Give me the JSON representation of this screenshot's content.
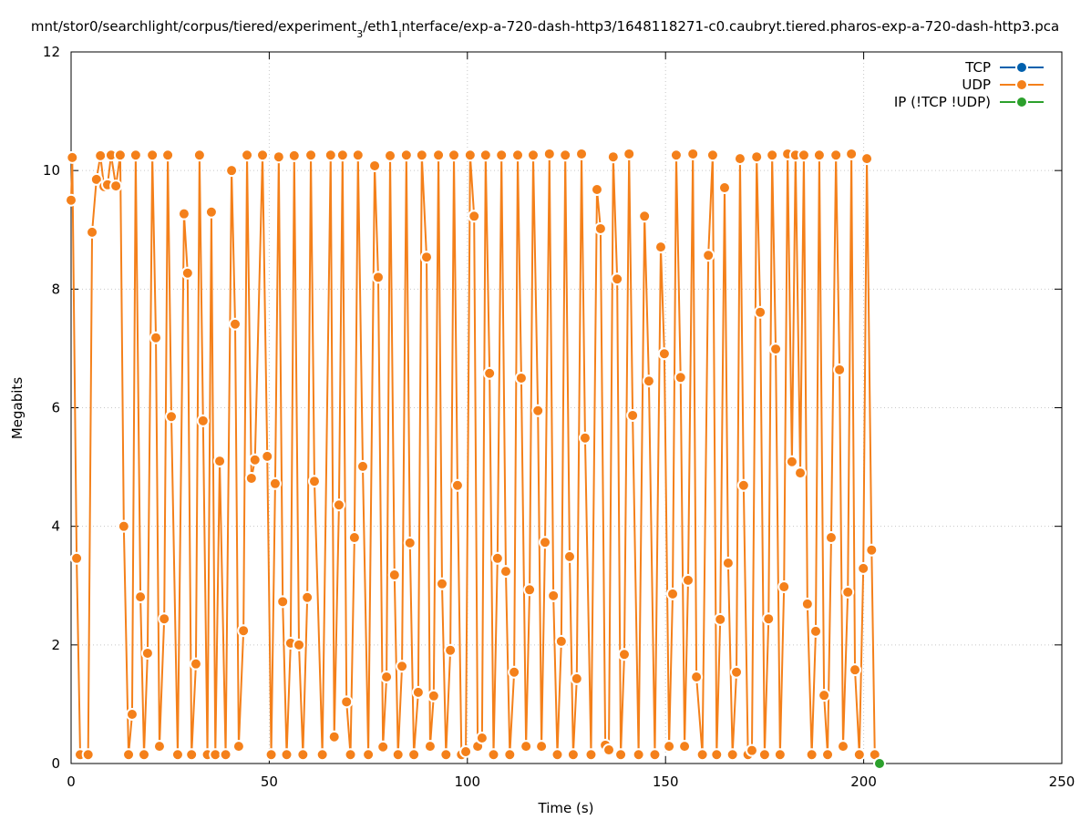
{
  "chart_data": {
    "type": "line",
    "title_parts": [
      {
        "text": "mnt/stor0/searchlight/corpus/tiered/experiment"
      },
      {
        "text": "3",
        "subscript": true
      },
      {
        "text": "/eth1"
      },
      {
        "text": "i",
        "subscript": true
      },
      {
        "text": "nterface/exp-a-720-dash-http3/1648118271-c0.caubryt.tiered.pharos-exp-a-720-dash-http3.pca"
      }
    ],
    "x_label": "Time (s)",
    "y_label": "Megabits",
    "xlim": [
      0,
      250
    ],
    "xticks": [
      0,
      50,
      100,
      150,
      200,
      250
    ],
    "ylim": [
      0,
      12
    ],
    "yticks": [
      0,
      2,
      4,
      6,
      8,
      10,
      12
    ],
    "grid": true,
    "legend": "top-right",
    "series": [
      {
        "name": "TCP",
        "color": "#0060ad",
        "x": [],
        "values": []
      },
      {
        "name": "UDP",
        "color": "#f4801a",
        "x": [
          0,
          0.3,
          1.4,
          2.3,
          4.3,
          5.3,
          6.4,
          7.4,
          8.3,
          9.2,
          10.1,
          11.3,
          12.4,
          13.3,
          14.5,
          15.4,
          16.3,
          17.5,
          18.4,
          19.3,
          20.5,
          21.4,
          22.3,
          23.5,
          24.4,
          25.3,
          26.9,
          28.5,
          29.4,
          30.4,
          31.5,
          32.4,
          33.3,
          34.4,
          35.4,
          36.4,
          37.5,
          39,
          40.5,
          41.4,
          42.3,
          43.5,
          44.4,
          45.5,
          46.4,
          48.3,
          49.5,
          50.5,
          51.5,
          52.4,
          53.4,
          54.4,
          55.4,
          56.3,
          57.5,
          58.5,
          59.6,
          60.5,
          61.4,
          63.4,
          65.5,
          66.4,
          67.6,
          68.5,
          69.5,
          70.5,
          71.5,
          72.4,
          73.6,
          75,
          76.6,
          77.5,
          78.7,
          79.6,
          80.5,
          81.6,
          82.5,
          83.5,
          84.6,
          85.5,
          86.5,
          87.6,
          88.5,
          89.7,
          90.6,
          91.5,
          92.7,
          93.6,
          94.6,
          95.7,
          96.6,
          97.5,
          98.5,
          99.6,
          100.7,
          101.7,
          102.6,
          103.7,
          104.6,
          105.6,
          106.6,
          107.6,
          108.6,
          109.7,
          110.7,
          111.8,
          112.7,
          113.6,
          114.8,
          115.7,
          116.6,
          117.8,
          118.7,
          119.6,
          120.7,
          121.7,
          122.7,
          123.7,
          124.7,
          125.8,
          126.7,
          127.6,
          128.8,
          129.7,
          131.2,
          132.7,
          133.6,
          134.8,
          135.7,
          136.8,
          137.8,
          138.7,
          139.6,
          140.8,
          141.7,
          143.2,
          144.7,
          145.8,
          147.3,
          148.8,
          149.7,
          150.9,
          151.8,
          152.7,
          153.8,
          154.8,
          155.7,
          156.9,
          157.8,
          159.3,
          160.8,
          161.9,
          162.9,
          163.8,
          164.9,
          165.8,
          166.9,
          167.9,
          168.8,
          169.7,
          170.8,
          171.8,
          173,
          173.9,
          175,
          176,
          176.9,
          177.8,
          178.9,
          179.9,
          180.8,
          181.9,
          182.8,
          184,
          184.9,
          185.8,
          186.9,
          187.9,
          188.8,
          190,
          190.9,
          191.8,
          193,
          193.9,
          194.8,
          196,
          196.9,
          197.8,
          198.9,
          199.9,
          200.8,
          202,
          202.8
        ],
        "values": [
          9.5,
          10.22,
          3.46,
          0.15,
          0.15,
          8.96,
          9.85,
          10.25,
          9.73,
          9.76,
          10.26,
          9.74,
          10.26,
          4.0,
          0.15,
          0.83,
          10.26,
          2.81,
          0.15,
          1.86,
          10.26,
          7.18,
          0.29,
          2.44,
          10.26,
          5.85,
          0.15,
          9.27,
          8.27,
          0.15,
          1.68,
          10.26,
          5.78,
          0.15,
          9.3,
          0.15,
          5.1,
          0.15,
          10.0,
          7.41,
          0.29,
          2.24,
          10.26,
          4.81,
          5.12,
          10.26,
          5.18,
          0.15,
          4.72,
          10.23,
          2.73,
          0.15,
          2.03,
          10.25,
          2.0,
          0.15,
          2.8,
          10.26,
          4.76,
          0.15,
          10.26,
          0.45,
          4.36,
          10.26,
          1.04,
          0.15,
          3.81,
          10.26,
          5.01,
          0.15,
          10.08,
          8.2,
          0.28,
          1.46,
          10.25,
          3.18,
          0.15,
          1.64,
          10.26,
          3.72,
          0.15,
          1.2,
          10.26,
          8.54,
          0.29,
          1.14,
          10.26,
          3.03,
          0.15,
          1.91,
          10.26,
          4.69,
          0.15,
          0.2,
          10.26,
          9.23,
          0.29,
          0.43,
          10.26,
          6.58,
          0.15,
          3.46,
          10.26,
          3.24,
          0.15,
          1.54,
          10.26,
          6.5,
          0.29,
          2.93,
          10.26,
          5.95,
          0.29,
          3.73,
          10.28,
          2.83,
          0.15,
          2.06,
          10.26,
          3.49,
          0.15,
          1.43,
          10.28,
          5.49,
          0.15,
          9.68,
          9.02,
          0.31,
          0.23,
          10.23,
          8.17,
          0.15,
          1.84,
          10.28,
          5.87,
          0.15,
          9.23,
          6.45,
          0.15,
          8.71,
          6.91,
          0.29,
          2.86,
          10.26,
          6.51,
          0.29,
          3.09,
          10.28,
          1.46,
          0.15,
          8.57,
          10.26,
          0.15,
          2.43,
          9.71,
          3.38,
          0.15,
          1.54,
          10.2,
          4.69,
          0.15,
          0.22,
          10.23,
          7.61,
          0.15,
          2.44,
          10.26,
          6.99,
          0.15,
          2.98,
          10.28,
          5.09,
          10.26,
          4.9,
          10.26,
          2.69,
          0.15,
          2.23,
          10.26,
          1.15,
          0.15,
          3.81,
          10.26,
          6.64,
          0.29,
          2.89,
          10.28,
          1.58,
          0.15,
          3.29,
          10.2,
          3.6,
          0.15
        ]
      },
      {
        "name": "IP (!TCP  !UDP)",
        "color": "#2ca02c",
        "x": [
          204
        ],
        "values": [
          0
        ]
      }
    ]
  }
}
